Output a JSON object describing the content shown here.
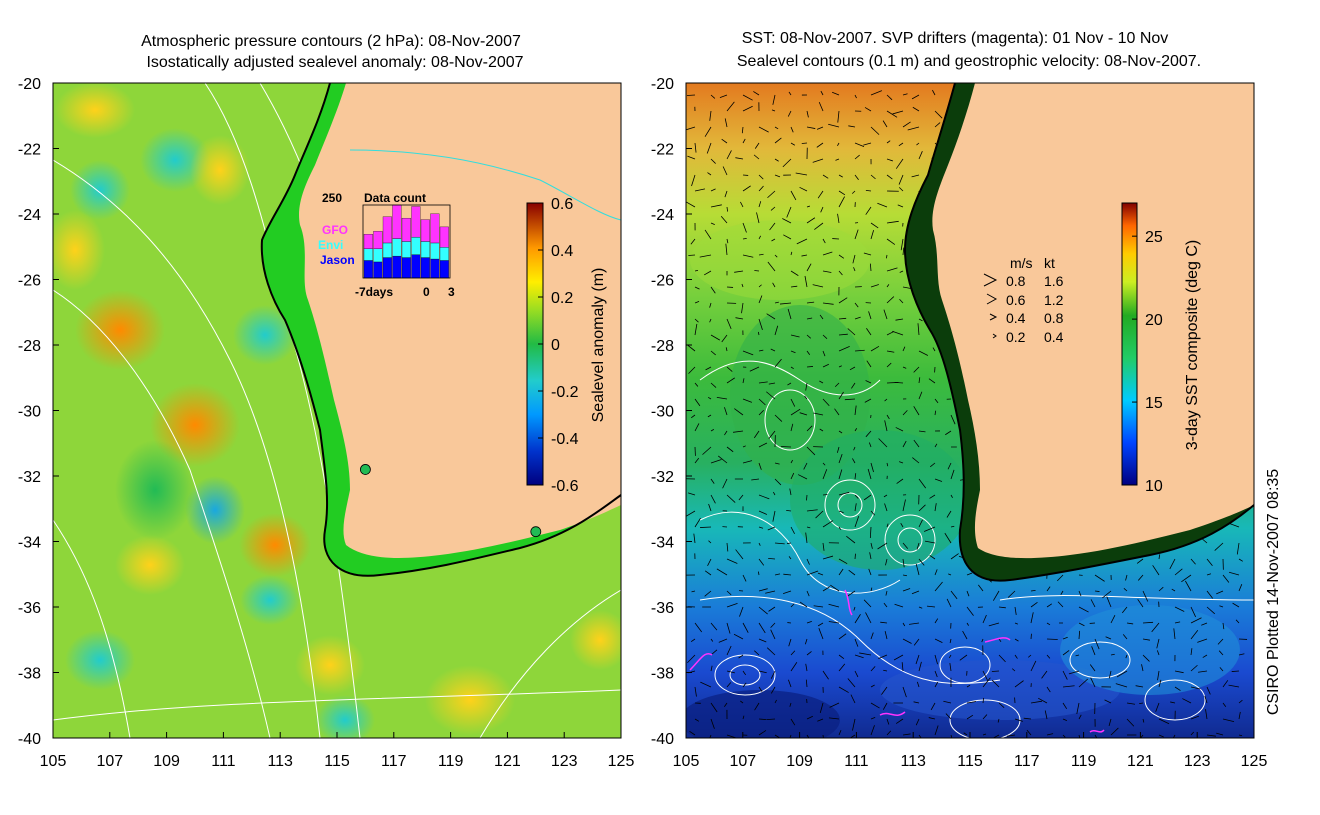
{
  "chart_data": [
    {
      "type": "heatmap",
      "title": [
        "Atmospheric pressure contours (2 hPa): 08-Nov-2007",
        "Isostatically adjusted sealevel anomaly: 08-Nov-2007"
      ],
      "x_ticks": [
        "105",
        "107",
        "109",
        "111",
        "113",
        "115",
        "117",
        "119",
        "121",
        "123",
        "125"
      ],
      "y_ticks": [
        "-20",
        "-22",
        "-24",
        "-26",
        "-28",
        "-30",
        "-32",
        "-34",
        "-36",
        "-38",
        "-40"
      ],
      "xlim": [
        105,
        125
      ],
      "ylim": [
        -40,
        -20
      ],
      "colorbar": {
        "label": "Sealevel anomaly (m)",
        "ticks": [
          "0.6",
          "0.4",
          "0.2",
          "0",
          "-0.2",
          "-0.4",
          "-0.6"
        ],
        "range": [
          -0.6,
          0.6
        ]
      },
      "inset": {
        "title": "Data count",
        "max_label": "250",
        "series": [
          {
            "name": "GFO",
            "color": "#ff33ff"
          },
          {
            "name": "Envi",
            "color": "#33ffff"
          },
          {
            "name": "Jason",
            "color": "#0000ff"
          }
        ],
        "x_labels": [
          "-7days",
          "0",
          "3"
        ],
        "bars": [
          {
            "jason": 60,
            "envi": 40,
            "gfo": 50
          },
          {
            "jason": 55,
            "envi": 45,
            "gfo": 60
          },
          {
            "jason": 70,
            "envi": 50,
            "gfo": 90
          },
          {
            "jason": 75,
            "envi": 60,
            "gfo": 115
          },
          {
            "jason": 70,
            "envi": 55,
            "gfo": 80
          },
          {
            "jason": 80,
            "envi": 60,
            "gfo": 105
          },
          {
            "jason": 70,
            "envi": 55,
            "gfo": 75
          },
          {
            "jason": 65,
            "envi": 55,
            "gfo": 100
          },
          {
            "jason": 60,
            "envi": 45,
            "gfo": 70
          }
        ],
        "ymax": 250
      },
      "stations": [
        {
          "lon": 116.0,
          "lat": -31.8
        },
        {
          "lon": 122.0,
          "lat": -33.7
        }
      ]
    },
    {
      "type": "heatmap",
      "title": [
        "SST: 08-Nov-2007. SVP drifters (magenta): 01 Nov - 10 Nov",
        "Sealevel contours (0.1 m) and geostrophic velocity: 08-Nov-2007."
      ],
      "x_ticks": [
        "105",
        "107",
        "109",
        "111",
        "113",
        "115",
        "117",
        "119",
        "121",
        "123",
        "125"
      ],
      "y_ticks": [
        "-20",
        "-22",
        "-24",
        "-26",
        "-28",
        "-30",
        "-32",
        "-34",
        "-36",
        "-38",
        "-40"
      ],
      "xlim": [
        105,
        125
      ],
      "ylim": [
        -40,
        -20
      ],
      "colorbar": {
        "label": "3-day SST composite (deg C)",
        "ticks": [
          "25",
          "20",
          "15",
          "10"
        ],
        "range": [
          10,
          27
        ]
      },
      "velocity_legend": {
        "header": [
          "m/s",
          "kt"
        ],
        "rows": [
          {
            "ms": "0.8",
            "kt": "1.6"
          },
          {
            "ms": "0.6",
            "kt": "1.2"
          },
          {
            "ms": "0.4",
            "kt": "0.8"
          },
          {
            "ms": "0.2",
            "kt": "0.4"
          }
        ]
      }
    }
  ],
  "credit": "CSIRO Plotted 14-Nov-2007 08:35",
  "colors": {
    "land": "#f9c89a",
    "coast": "#000000",
    "contour": "#ffffff",
    "shelf_left": "#22cc22",
    "shelf_right": "#003300"
  }
}
